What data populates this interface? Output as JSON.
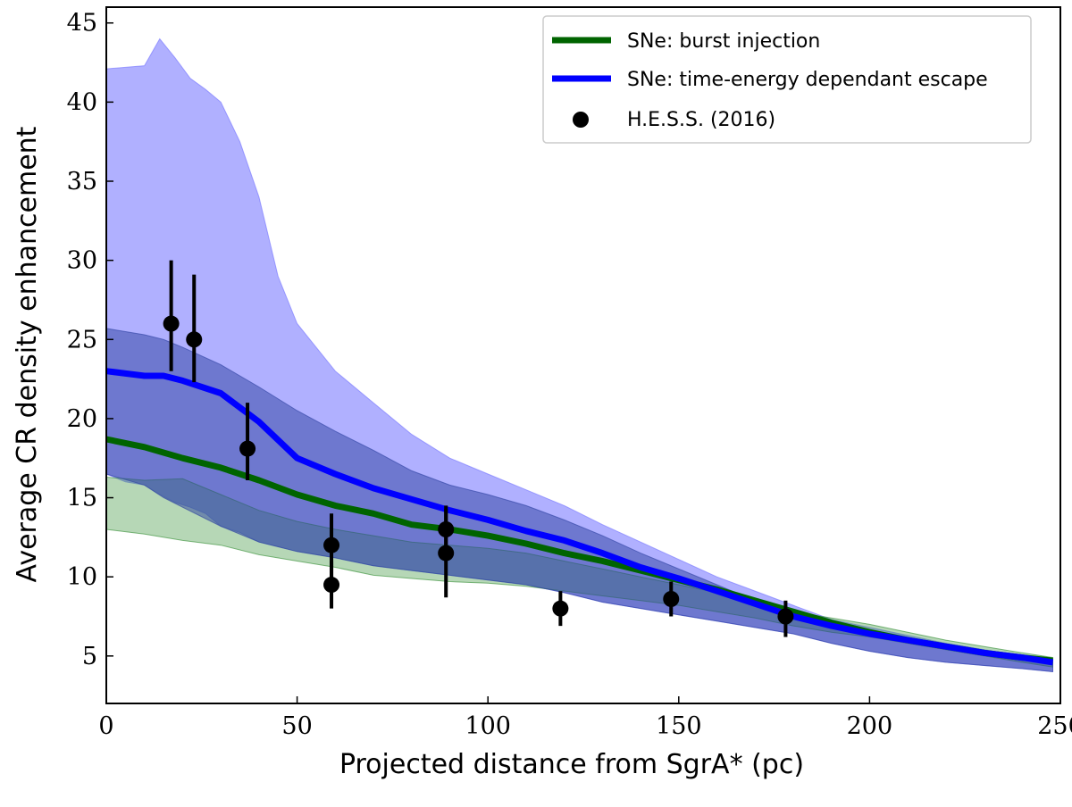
{
  "chart_data": {
    "type": "line",
    "xlabel": "Projected distance from SgrA* (pc)",
    "ylabel": "Average CR density enhancement",
    "xlim": [
      0,
      250
    ],
    "ylim": [
      2,
      46
    ],
    "xticks": [
      0,
      50,
      100,
      150,
      200,
      250
    ],
    "yticks": [
      5,
      10,
      15,
      20,
      25,
      30,
      35,
      40,
      45
    ],
    "legend_position": "top-right",
    "series": [
      {
        "name": "SNe: burst injection",
        "color": "#006400",
        "x": [
          0,
          10,
          20,
          30,
          40,
          50,
          60,
          70,
          80,
          90,
          100,
          110,
          120,
          130,
          140,
          150,
          160,
          170,
          180,
          190,
          200,
          210,
          220,
          230,
          240,
          248
        ],
        "values": [
          18.7,
          18.2,
          17.5,
          16.9,
          16.1,
          15.2,
          14.5,
          14.0,
          13.3,
          13.0,
          12.6,
          12.1,
          11.5,
          11.0,
          10.4,
          9.8,
          9.2,
          8.5,
          7.8,
          7.1,
          6.5,
          6.0,
          5.6,
          5.2,
          4.9,
          4.7
        ],
        "band_lower": [
          13.0,
          12.7,
          12.3,
          12.0,
          11.4,
          11.0,
          10.6,
          10.1,
          9.9,
          9.7,
          9.6,
          9.4,
          9.1,
          8.8,
          8.5,
          8.2,
          7.8,
          7.4,
          6.9,
          6.5,
          6.2,
          5.8,
          5.4,
          5.0,
          4.6,
          4.3
        ],
        "band_upper": [
          16.3,
          16.1,
          16.2,
          15.2,
          14.2,
          13.5,
          13.0,
          12.6,
          12.2,
          12.0,
          11.8,
          11.5,
          11.0,
          10.5,
          10.0,
          9.5,
          9.0,
          8.4,
          7.8,
          7.4,
          7.0,
          6.5,
          6.0,
          5.6,
          5.2,
          4.9
        ]
      },
      {
        "name": "SNe: time-energy dependant escape",
        "color": "#0000ff",
        "x": [
          0,
          10,
          15,
          20,
          30,
          40,
          50,
          60,
          70,
          80,
          90,
          100,
          110,
          120,
          130,
          140,
          150,
          160,
          170,
          180,
          190,
          200,
          210,
          220,
          230,
          240,
          248
        ],
        "values": [
          23.0,
          22.7,
          22.7,
          22.4,
          21.6,
          19.8,
          17.5,
          16.5,
          15.6,
          14.9,
          14.2,
          13.6,
          12.9,
          12.3,
          11.5,
          10.6,
          9.9,
          9.1,
          8.3,
          7.5,
          6.9,
          6.4,
          6.0,
          5.6,
          5.2,
          4.9,
          4.6
        ],
        "band_lower": [
          16.5,
          15.8,
          15.0,
          14.4,
          13.2,
          12.2,
          11.6,
          11.2,
          10.7,
          10.4,
          10.1,
          9.8,
          9.5,
          9.0,
          8.4,
          8.0,
          7.6,
          7.2,
          6.8,
          6.4,
          5.8,
          5.3,
          4.9,
          4.6,
          4.4,
          4.2,
          4.0
        ],
        "band_upper": [
          25.7,
          25.3,
          25.0,
          24.5,
          23.4,
          22.0,
          20.5,
          19.2,
          18.0,
          16.7,
          15.8,
          15.2,
          14.5,
          13.6,
          12.6,
          11.5,
          10.5,
          9.5,
          8.5,
          7.8,
          7.1,
          6.6,
          6.1,
          5.7,
          5.3,
          5.0,
          4.8
        ]
      },
      {
        "name": "SNe: time-energy dependant escape (light band)",
        "color": "#6a6aff",
        "x": [
          0,
          5,
          10,
          14,
          18,
          22,
          26,
          30,
          35,
          40,
          45,
          50,
          60,
          70,
          80,
          90,
          100,
          110,
          120,
          130,
          140,
          150,
          160,
          170,
          180,
          190,
          200,
          210,
          220,
          230,
          240,
          248
        ],
        "band_lower": [
          16.5,
          16.0,
          15.8,
          15.2,
          14.7,
          14.4,
          14.0,
          13.2,
          12.8,
          12.2,
          11.9,
          11.6,
          11.2,
          10.7,
          10.4,
          10.1,
          9.8,
          9.5,
          9.0,
          8.4,
          8.0,
          7.6,
          7.2,
          6.8,
          6.4,
          5.8,
          5.3,
          4.9,
          4.6,
          4.4,
          4.2,
          4.0
        ],
        "band_upper": [
          42.1,
          42.2,
          42.3,
          44.0,
          42.8,
          41.5,
          40.8,
          40.0,
          37.5,
          34.0,
          29.0,
          26.0,
          23.0,
          21.0,
          19.0,
          17.5,
          16.5,
          15.5,
          14.5,
          13.3,
          12.2,
          11.1,
          10.0,
          9.1,
          8.2,
          7.3,
          6.8,
          6.3,
          5.8,
          5.4,
          5.0,
          4.7
        ]
      }
    ],
    "points": {
      "name": "H.E.S.S. (2016)",
      "color": "#000000",
      "x": [
        17,
        23,
        37,
        59,
        59,
        89,
        89,
        119,
        148,
        178
      ],
      "y": [
        26.0,
        25.0,
        18.1,
        12.0,
        9.5,
        13.0,
        11.5,
        8.0,
        8.6,
        7.5
      ],
      "err_low": [
        3.0,
        2.7,
        2.0,
        2.0,
        1.5,
        1.8,
        2.8,
        1.1,
        1.1,
        1.3
      ],
      "err_high": [
        4.0,
        4.1,
        2.9,
        2.0,
        1.5,
        1.5,
        2.8,
        1.1,
        1.1,
        1.0
      ]
    }
  }
}
